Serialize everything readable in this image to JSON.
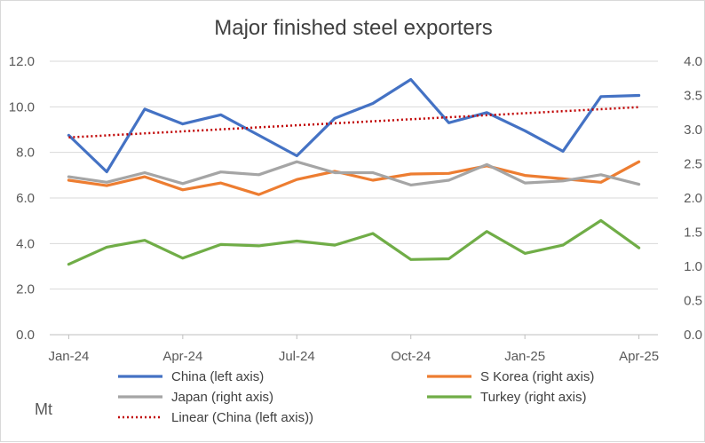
{
  "chart_data": {
    "type": "line",
    "title": "Major finished steel exporters",
    "unit_label": "Mt",
    "x": [
      "2024-01",
      "2024-02",
      "2024-03",
      "2024-04",
      "2024-05",
      "2024-06",
      "2024-07",
      "2024-08",
      "2024-09",
      "2024-10",
      "2024-11",
      "2024-12",
      "2025-01",
      "2025-02",
      "2025-03",
      "2025-04"
    ],
    "x_tick_labels": [
      "Jan-24",
      "Apr-24",
      "Jul-24",
      "Oct-24",
      "Jan-25",
      "Apr-25"
    ],
    "left_axis": {
      "ylim": [
        0,
        12
      ],
      "ticks": [
        "0.0",
        "2.0",
        "4.0",
        "6.0",
        "8.0",
        "10.0",
        "12.0"
      ]
    },
    "right_axis": {
      "ylim": [
        0,
        4
      ],
      "ticks": [
        "0.0",
        "0.5",
        "1.0",
        "1.5",
        "2.0",
        "2.5",
        "3.0",
        "3.5",
        "4.0"
      ]
    },
    "grid": "horizontal",
    "legend_position": "bottom",
    "series": [
      {
        "name": "China (left axis)",
        "axis": "left",
        "color": "#4472C4",
        "style": "solid",
        "values": [
          8.75,
          7.15,
          9.9,
          9.25,
          9.65,
          8.75,
          7.85,
          9.5,
          10.15,
          11.2,
          9.3,
          9.75,
          8.95,
          8.05,
          10.45,
          10.5
        ]
      },
      {
        "name": "S Korea (right axis)",
        "axis": "right",
        "color": "#ED7D31",
        "style": "solid",
        "values": [
          2.26,
          2.18,
          2.31,
          2.12,
          2.22,
          2.05,
          2.27,
          2.39,
          2.26,
          2.35,
          2.36,
          2.47,
          2.33,
          2.28,
          2.23,
          2.53
        ]
      },
      {
        "name": "Japan (right axis)",
        "axis": "right",
        "color": "#A5A5A5",
        "style": "solid",
        "values": [
          2.31,
          2.23,
          2.37,
          2.21,
          2.38,
          2.34,
          2.53,
          2.37,
          2.37,
          2.19,
          2.26,
          2.49,
          2.22,
          2.25,
          2.34,
          2.2
        ]
      },
      {
        "name": "Turkey (right axis)",
        "axis": "right",
        "color": "#70AD47",
        "style": "solid",
        "values": [
          1.03,
          1.28,
          1.38,
          1.12,
          1.32,
          1.3,
          1.37,
          1.31,
          1.48,
          1.1,
          1.11,
          1.51,
          1.19,
          1.31,
          1.67,
          1.27
        ]
      },
      {
        "name": "Linear (China (left axis))",
        "axis": "left",
        "color": "#C00000",
        "style": "dotted",
        "trend": true
      }
    ]
  }
}
